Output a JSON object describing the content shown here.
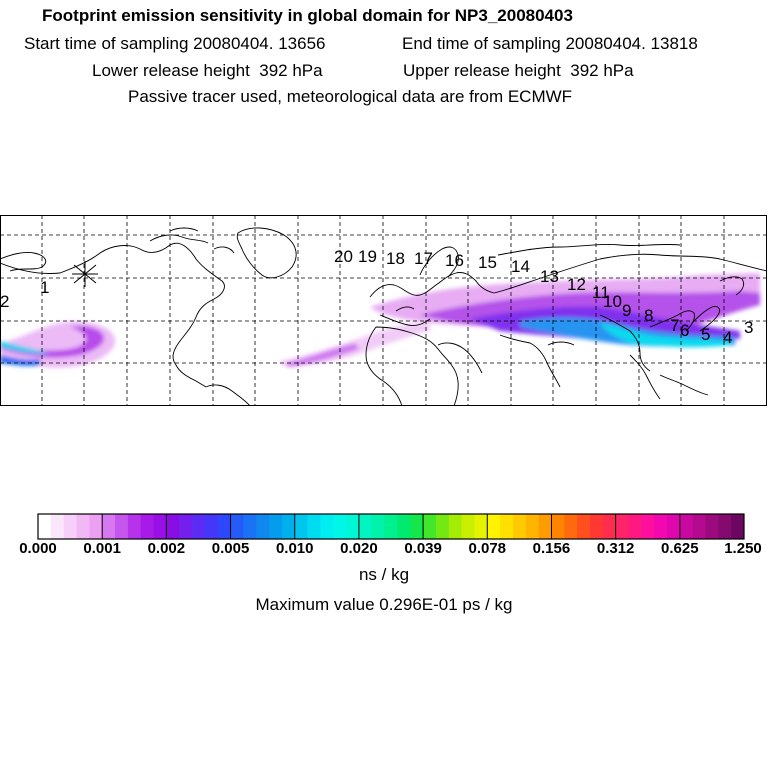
{
  "header": {
    "title": "Footprint emission sensitivity in global domain for NP3_20080403",
    "line2_start": "Start time of sampling 20080404. 13656",
    "line2_end": "End time of sampling 20080404. 13818",
    "line3_lower": "Lower release height  392 hPa",
    "line3_upper": "Upper release height  392 hPa",
    "line4": "Passive tracer used, meteorological data are from ECMWF"
  },
  "map": {
    "trajectory_labels": [
      "20",
      "19",
      "18",
      "17",
      "16",
      "15",
      "14",
      "13",
      "12",
      "11",
      "10",
      "9",
      "8",
      "7",
      "6",
      "5",
      "4",
      "3",
      "2",
      "1"
    ],
    "colors": {
      "land_outline": "#000000",
      "grid": "#000000"
    }
  },
  "colorbar": {
    "tick_labels": [
      "0.000",
      "0.001",
      "0.002",
      "0.005",
      "0.010",
      "0.020",
      "0.039",
      "0.078",
      "0.156",
      "0.312",
      "0.625",
      "1.250"
    ],
    "colors": [
      "#ffffff",
      "#fbe7fb",
      "#f6d0f8",
      "#f2b8f6",
      "#eba0f3",
      "#d778f0",
      "#c655ee",
      "#b633eb",
      "#a71ae8",
      "#9810e6",
      "#8a0ee3",
      "#7320ee",
      "#5c2cf5",
      "#4338fa",
      "#2f47fb",
      "#255cf8",
      "#1a72f4",
      "#1088f0",
      "#069ced",
      "#00b0ec",
      "#00c6ee",
      "#00dcef",
      "#00eef0",
      "#00f6e6",
      "#00f7d6",
      "#00f5c0",
      "#00f3a8",
      "#00ef8f",
      "#00ea70",
      "#14e64c",
      "#42e62b",
      "#74e813",
      "#a2ec06",
      "#c8f000",
      "#e4f400",
      "#fff300",
      "#ffe000",
      "#ffcb00",
      "#ffb500",
      "#ff9d00",
      "#ff8400",
      "#ff6a0e",
      "#ff4f1f",
      "#ff3834",
      "#ff2d4d",
      "#ff2367",
      "#ff1882",
      "#ff0f9d",
      "#f208b0",
      "#e006ad",
      "#c8089f",
      "#b30a8f",
      "#9d0a80",
      "#850a70",
      "#6c0660"
    ],
    "unit": "ns / kg",
    "maximum": "Maximum value  0.296E-01 ps / kg"
  }
}
